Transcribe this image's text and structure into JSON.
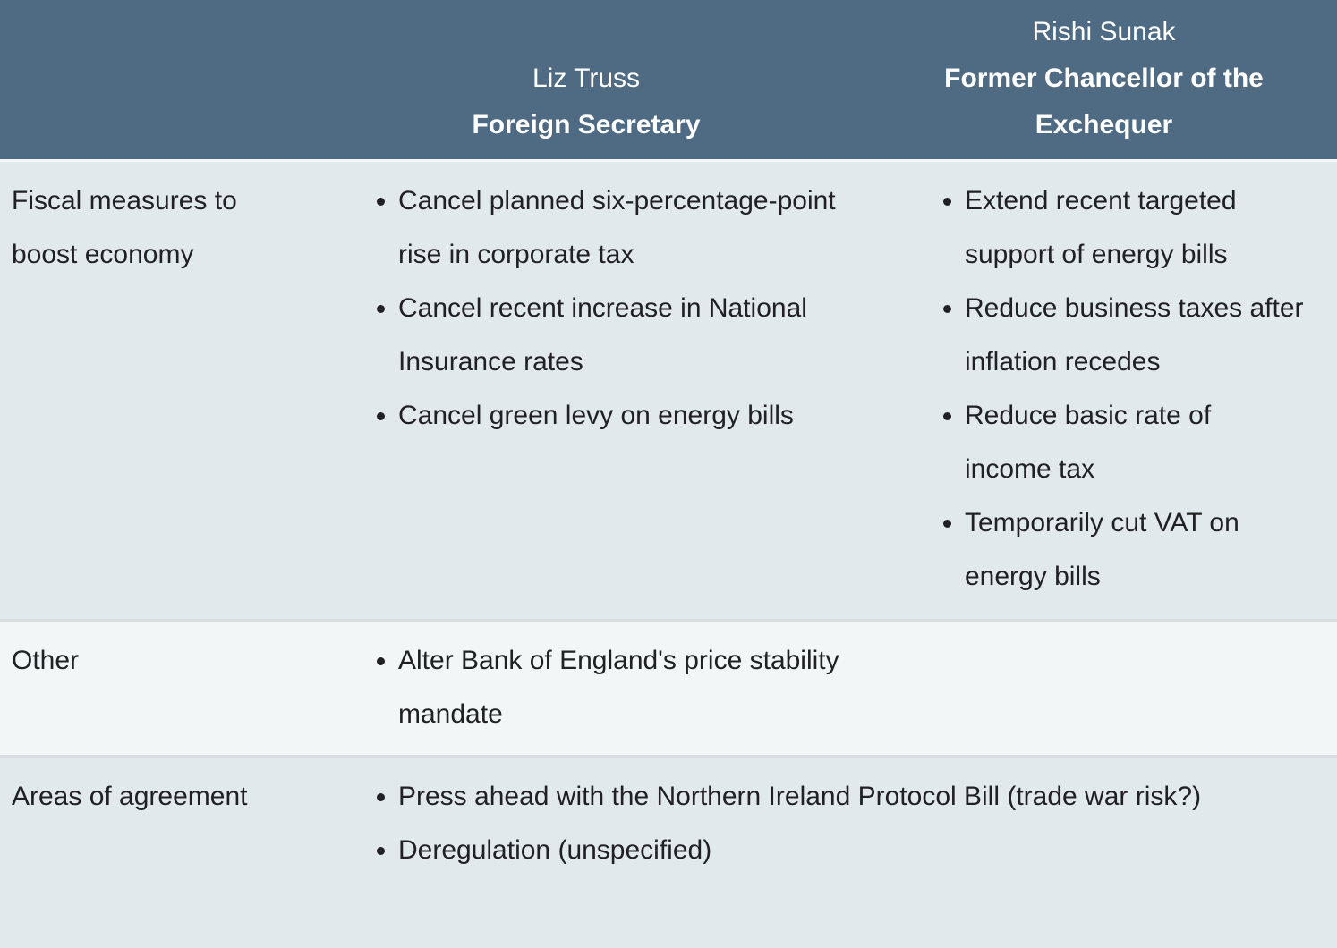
{
  "chart_data": {
    "type": "table",
    "title": "",
    "columns": [
      "",
      "Liz Truss — Foreign Secretary",
      "Rishi Sunak — Former Chancellor of the Exchequer"
    ],
    "rows": [
      {
        "label": "Fiscal measures to boost economy",
        "truss": [
          "Cancel planned six-percentage-point rise in corporate tax",
          "Cancel recent increase in National Insurance rates",
          "Cancel green levy on energy bills"
        ],
        "sunak": [
          "Extend recent targeted support of energy bills",
          "Reduce business taxes after inflation recedes",
          "Reduce basic rate of income tax",
          "Temporarily cut VAT on energy bills"
        ]
      },
      {
        "label": "Other",
        "truss": [
          "Alter Bank of England's price stability mandate"
        ],
        "sunak": []
      },
      {
        "label": "Areas of agreement",
        "shared": [
          "Press ahead with the Northern Ireland Protocol Bill (trade war risk?)",
          "Deregulation (unspecified)"
        ]
      }
    ]
  },
  "header": {
    "truss": {
      "name": "Liz Truss",
      "title": "Foreign Secretary"
    },
    "sunak": {
      "name": "Rishi Sunak",
      "title": "Former Chancellor of the Exchequer"
    }
  },
  "rows": {
    "fiscal": {
      "label": "Fiscal measures to boost economy",
      "truss": [
        "Cancel planned six-percentage-point rise in corporate tax",
        "Cancel recent increase in National Insurance rates",
        "Cancel green levy on energy bills"
      ],
      "sunak": [
        "Extend recent targeted support of energy bills",
        "Reduce business taxes after inflation recedes",
        "Reduce basic rate of income tax",
        "Temporarily cut VAT on energy bills"
      ]
    },
    "other": {
      "label": "Other",
      "truss": [
        "Alter Bank of England's price stability mandate"
      ]
    },
    "agreement": {
      "label": "Areas of agreement",
      "shared": [
        "Press ahead with the Northern Ireland Protocol Bill (trade war risk?)",
        "Deregulation (unspecified)"
      ]
    }
  },
  "colors": {
    "header_bg": "#4e6b83",
    "header_text": "#ffffff",
    "row_bg": "#e2e9ed",
    "row_alt_bg": "#f2f6f7",
    "separator": "#d9dde0",
    "body_text": "#202124"
  }
}
